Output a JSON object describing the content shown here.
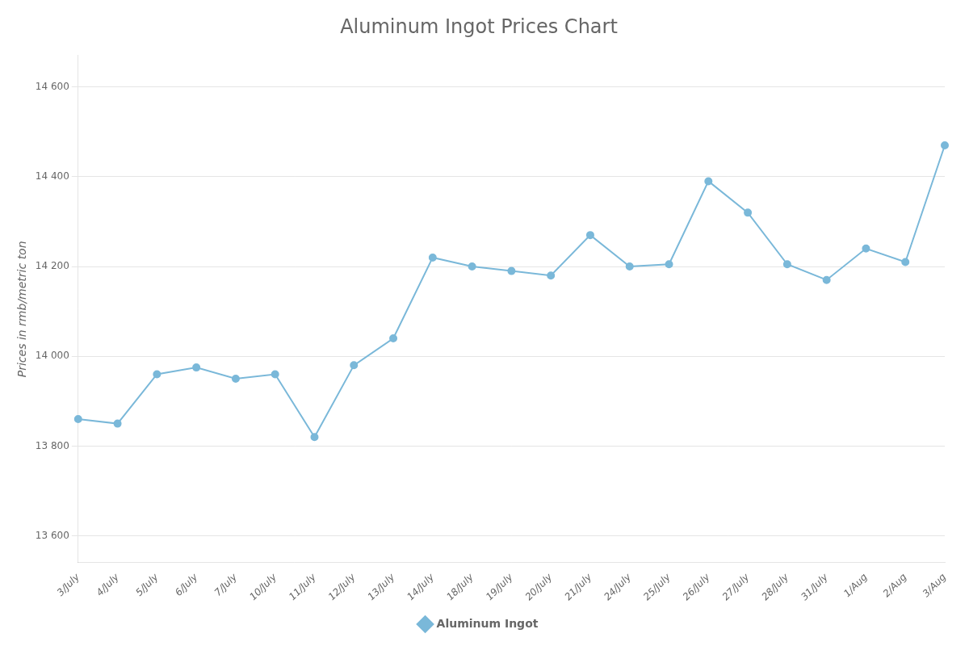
{
  "chart_data": {
    "type": "line",
    "title": "Aluminum Ingot Prices Chart",
    "ylabel": "Prices in rmb/metric ton",
    "categories": [
      "3/July",
      "4/July",
      "5/July",
      "6/July",
      "7/July",
      "10/July",
      "11/July",
      "12/July",
      "13/July",
      "14/July",
      "18/July",
      "19/July",
      "20/July",
      "21/July",
      "24/July",
      "25/July",
      "26/July",
      "27/July",
      "28/July",
      "31/July",
      "1/Aug",
      "2/Aug",
      "3/Aug"
    ],
    "series": [
      {
        "name": "Aluminum Ingot",
        "color": "#7ab8d9",
        "marker": "circle",
        "values": [
          13860,
          13850,
          13960,
          13975,
          13950,
          13960,
          13820,
          13980,
          14040,
          14220,
          14200,
          14190,
          14180,
          14270,
          14200,
          14205,
          14390,
          14320,
          14205,
          14170,
          14240,
          14210,
          14470
        ]
      }
    ],
    "ylim": [
      13540,
      14670
    ],
    "yticks": [
      {
        "value": 13600,
        "label": "13 600"
      },
      {
        "value": 13800,
        "label": "13 800"
      },
      {
        "value": 14000,
        "label": "14 000"
      },
      {
        "value": 14200,
        "label": "14 200"
      },
      {
        "value": 14400,
        "label": "14 400"
      },
      {
        "value": 14600,
        "label": "14 600"
      }
    ],
    "grid": true,
    "legend": "bottom"
  }
}
